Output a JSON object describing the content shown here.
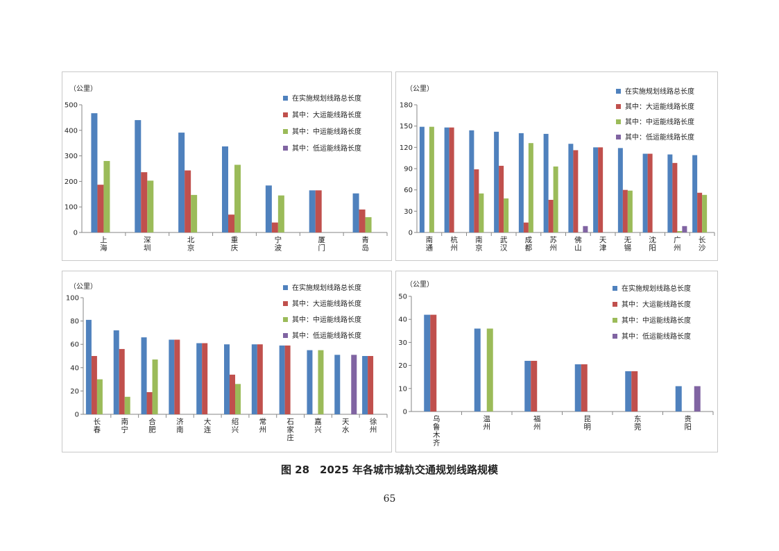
{
  "figure": {
    "caption": "图 28　2025 年各城市城轨交通规划线路规模",
    "page_number": "65"
  },
  "series_colors": [
    "#4f81bd",
    "#c0504d",
    "#9bbb59",
    "#8064a2"
  ],
  "chart_data": [
    {
      "type": "bar",
      "unit_label": "（公里）",
      "ylim": [
        0,
        500
      ],
      "yticks": [
        "0",
        "100",
        "200",
        "300",
        "400",
        "500"
      ],
      "legend_position": "top-right",
      "grid": false,
      "categories": [
        "上海",
        "深圳",
        "北京",
        "重庆",
        "宁波",
        "厦门",
        "青岛"
      ],
      "series": [
        {
          "name": "在实施规划线路总长度",
          "values": [
            467,
            440,
            391,
            337,
            184,
            165,
            153
          ]
        },
        {
          "name": "其中：大运能线路长度",
          "values": [
            187,
            236,
            243,
            70,
            39,
            165,
            90
          ]
        },
        {
          "name": "其中：中运能线路长度",
          "values": [
            280,
            203,
            147,
            265,
            145,
            0,
            60
          ]
        },
        {
          "name": "其中：低运能线路长度",
          "values": [
            0,
            0,
            0,
            0,
            0,
            0,
            0
          ]
        }
      ]
    },
    {
      "type": "bar",
      "unit_label": "（公里）",
      "ylim": [
        0,
        180
      ],
      "yticks": [
        "0",
        "30",
        "60",
        "90",
        "120",
        "150",
        "180"
      ],
      "legend_position": "top-right",
      "grid": false,
      "categories": [
        "南通",
        "杭州",
        "南京",
        "武汉",
        "成都",
        "苏州",
        "佛山",
        "天津",
        "无锡",
        "沈阳",
        "广州",
        "长沙"
      ],
      "series": [
        {
          "name": "在实施规划线路总长度",
          "values": [
            149,
            148,
            144,
            142,
            140,
            139,
            125,
            120,
            119,
            111,
            110,
            109
          ]
        },
        {
          "name": "其中：大运能线路长度",
          "values": [
            0,
            148,
            89,
            94,
            14,
            46,
            116,
            120,
            60,
            111,
            98,
            56
          ]
        },
        {
          "name": "其中：中运能线路长度",
          "values": [
            149,
            0,
            55,
            48,
            126,
            93,
            0,
            0,
            59,
            0,
            2,
            53
          ]
        },
        {
          "name": "其中：低运能线路长度",
          "values": [
            0,
            0,
            0,
            0,
            0,
            0,
            9,
            0,
            0,
            0,
            9,
            0
          ]
        }
      ]
    },
    {
      "type": "bar",
      "unit_label": "（公里）",
      "ylim": [
        0,
        100
      ],
      "yticks": [
        "0",
        "20",
        "40",
        "60",
        "80",
        "100"
      ],
      "legend_position": "top-right",
      "grid": false,
      "categories": [
        "长春",
        "南宁",
        "合肥",
        "济南",
        "大连",
        "绍兴",
        "常州",
        "石家庄",
        "嘉兴",
        "天水",
        "徐州"
      ],
      "series": [
        {
          "name": "在实施规划线路总长度",
          "values": [
            81,
            72,
            66,
            64,
            61,
            60,
            60,
            59,
            55,
            51,
            50
          ]
        },
        {
          "name": "其中：大运能线路长度",
          "values": [
            50,
            56,
            19,
            64,
            61,
            34,
            60,
            59,
            0,
            0,
            50
          ]
        },
        {
          "name": "其中：中运能线路长度",
          "values": [
            30,
            15,
            47,
            0,
            0,
            26,
            0,
            0,
            55,
            0,
            0
          ]
        },
        {
          "name": "其中：低运能线路长度",
          "values": [
            0,
            0,
            0,
            0,
            0,
            0,
            0,
            0,
            0,
            51,
            0
          ]
        }
      ]
    },
    {
      "type": "bar",
      "unit_label": "（公里）",
      "ylim": [
        0,
        50
      ],
      "yticks": [
        "0",
        "10",
        "20",
        "30",
        "40",
        "50"
      ],
      "legend_position": "top-right",
      "grid": false,
      "categories": [
        "乌鲁木齐",
        "温州",
        "福州",
        "昆明",
        "东莞",
        "贵阳"
      ],
      "series": [
        {
          "name": "在实施规划线路总长度",
          "values": [
            42,
            36,
            22,
            20.5,
            17.5,
            11
          ]
        },
        {
          "name": "其中：大运能线路长度",
          "values": [
            42,
            0,
            22,
            20.5,
            17.5,
            0
          ]
        },
        {
          "name": "其中：中运能线路长度",
          "values": [
            0,
            36,
            0,
            0,
            0,
            0
          ]
        },
        {
          "name": "其中：低运能线路长度",
          "values": [
            0,
            0,
            0,
            0,
            0,
            11
          ]
        }
      ]
    }
  ]
}
